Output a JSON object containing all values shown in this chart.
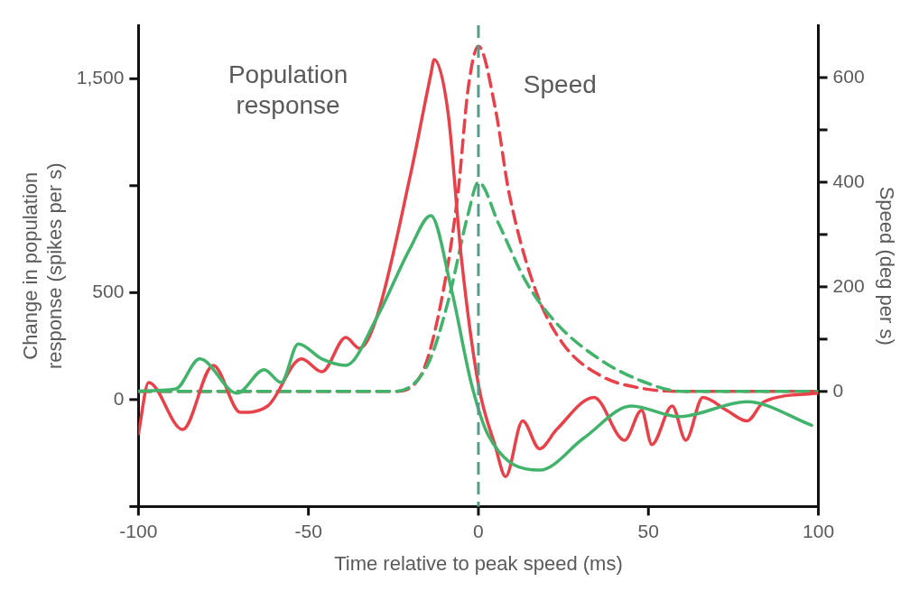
{
  "chart_data": {
    "type": "line",
    "xlabel": "Time relative to peak speed (ms)",
    "ylabel": "Change in population response (spikes per s)",
    "y2label": "Speed (deg per s)",
    "xlim": [
      -100,
      100
    ],
    "xticks": [
      -100,
      -50,
      0,
      50,
      100
    ],
    "ylim": [
      -500,
      1750
    ],
    "yticks": [
      {
        "value": -500,
        "label": null
      },
      0,
      500,
      {
        "value": 1000,
        "label": null
      },
      {
        "value": 1500,
        "label": "1,500"
      }
    ],
    "y2lim": [
      -220,
      700
    ],
    "y2ticks": [
      0,
      {
        "value": 100,
        "label": null
      },
      200,
      {
        "value": 300,
        "label": null
      },
      400,
      {
        "value": 500,
        "label": null
      },
      600
    ],
    "grid": false,
    "annotations": [
      "Population response",
      "Speed"
    ],
    "ref_lines": [
      {
        "axis": "x",
        "value": 0,
        "color": "#5a9a8a",
        "line_style": "dashed"
      }
    ],
    "series": [
      {
        "type": "line",
        "color": "#41b36b",
        "line_style": "solid",
        "x": [
          -100,
          -89,
          -82,
          -71,
          -63,
          -58,
          -53,
          -46,
          -39,
          -30,
          -20,
          -14,
          -8,
          -2,
          3,
          18,
          31,
          45,
          59,
          79,
          98
        ],
        "values": [
          40,
          50,
          190,
          30,
          140,
          80,
          260,
          190,
          160,
          380,
          710,
          860,
          520,
          70,
          -170,
          -330,
          -180,
          -30,
          -80,
          -10,
          -120
        ]
      },
      {
        "type": "line",
        "color": "#e8414a",
        "line_style": "solid",
        "x": [
          -100,
          -97,
          -87,
          -78,
          -70,
          -62,
          -52,
          -46,
          -39,
          -35,
          -30,
          -20,
          -14,
          -13,
          -9,
          -5,
          0,
          5,
          8,
          13,
          18,
          23,
          34,
          43,
          48,
          51,
          57,
          61,
          66,
          73,
          79,
          84,
          100
        ],
        "values": [
          -160,
          80,
          -140,
          160,
          -60,
          -30,
          190,
          130,
          290,
          240,
          380,
          1050,
          1520,
          1590,
          1350,
          660,
          70,
          -220,
          -360,
          -100,
          -230,
          -140,
          10,
          -190,
          -50,
          -210,
          -30,
          -190,
          10,
          -50,
          -100,
          -10,
          30
        ]
      },
      {
        "type": "line",
        "color": "#41b36b",
        "line_style": "dashed",
        "axis": "y2",
        "x": [
          -100,
          -25,
          -15,
          -9,
          -3,
          0,
          6,
          14,
          23,
          36,
          48,
          60,
          100
        ],
        "values": [
          0,
          0,
          50,
          170,
          340,
          400,
          320,
          210,
          130,
          60,
          20,
          0,
          0
        ]
      },
      {
        "type": "line",
        "color": "#e8414a",
        "line_style": "dashed",
        "axis": "y2",
        "x": [
          -100,
          -25,
          -17,
          -11,
          -6,
          -3,
          0,
          5,
          9,
          17,
          25,
          36,
          48,
          60,
          100
        ],
        "values": [
          0,
          0,
          30,
          170,
          380,
          580,
          660,
          540,
          380,
          190,
          90,
          30,
          6,
          0,
          0
        ]
      }
    ]
  }
}
